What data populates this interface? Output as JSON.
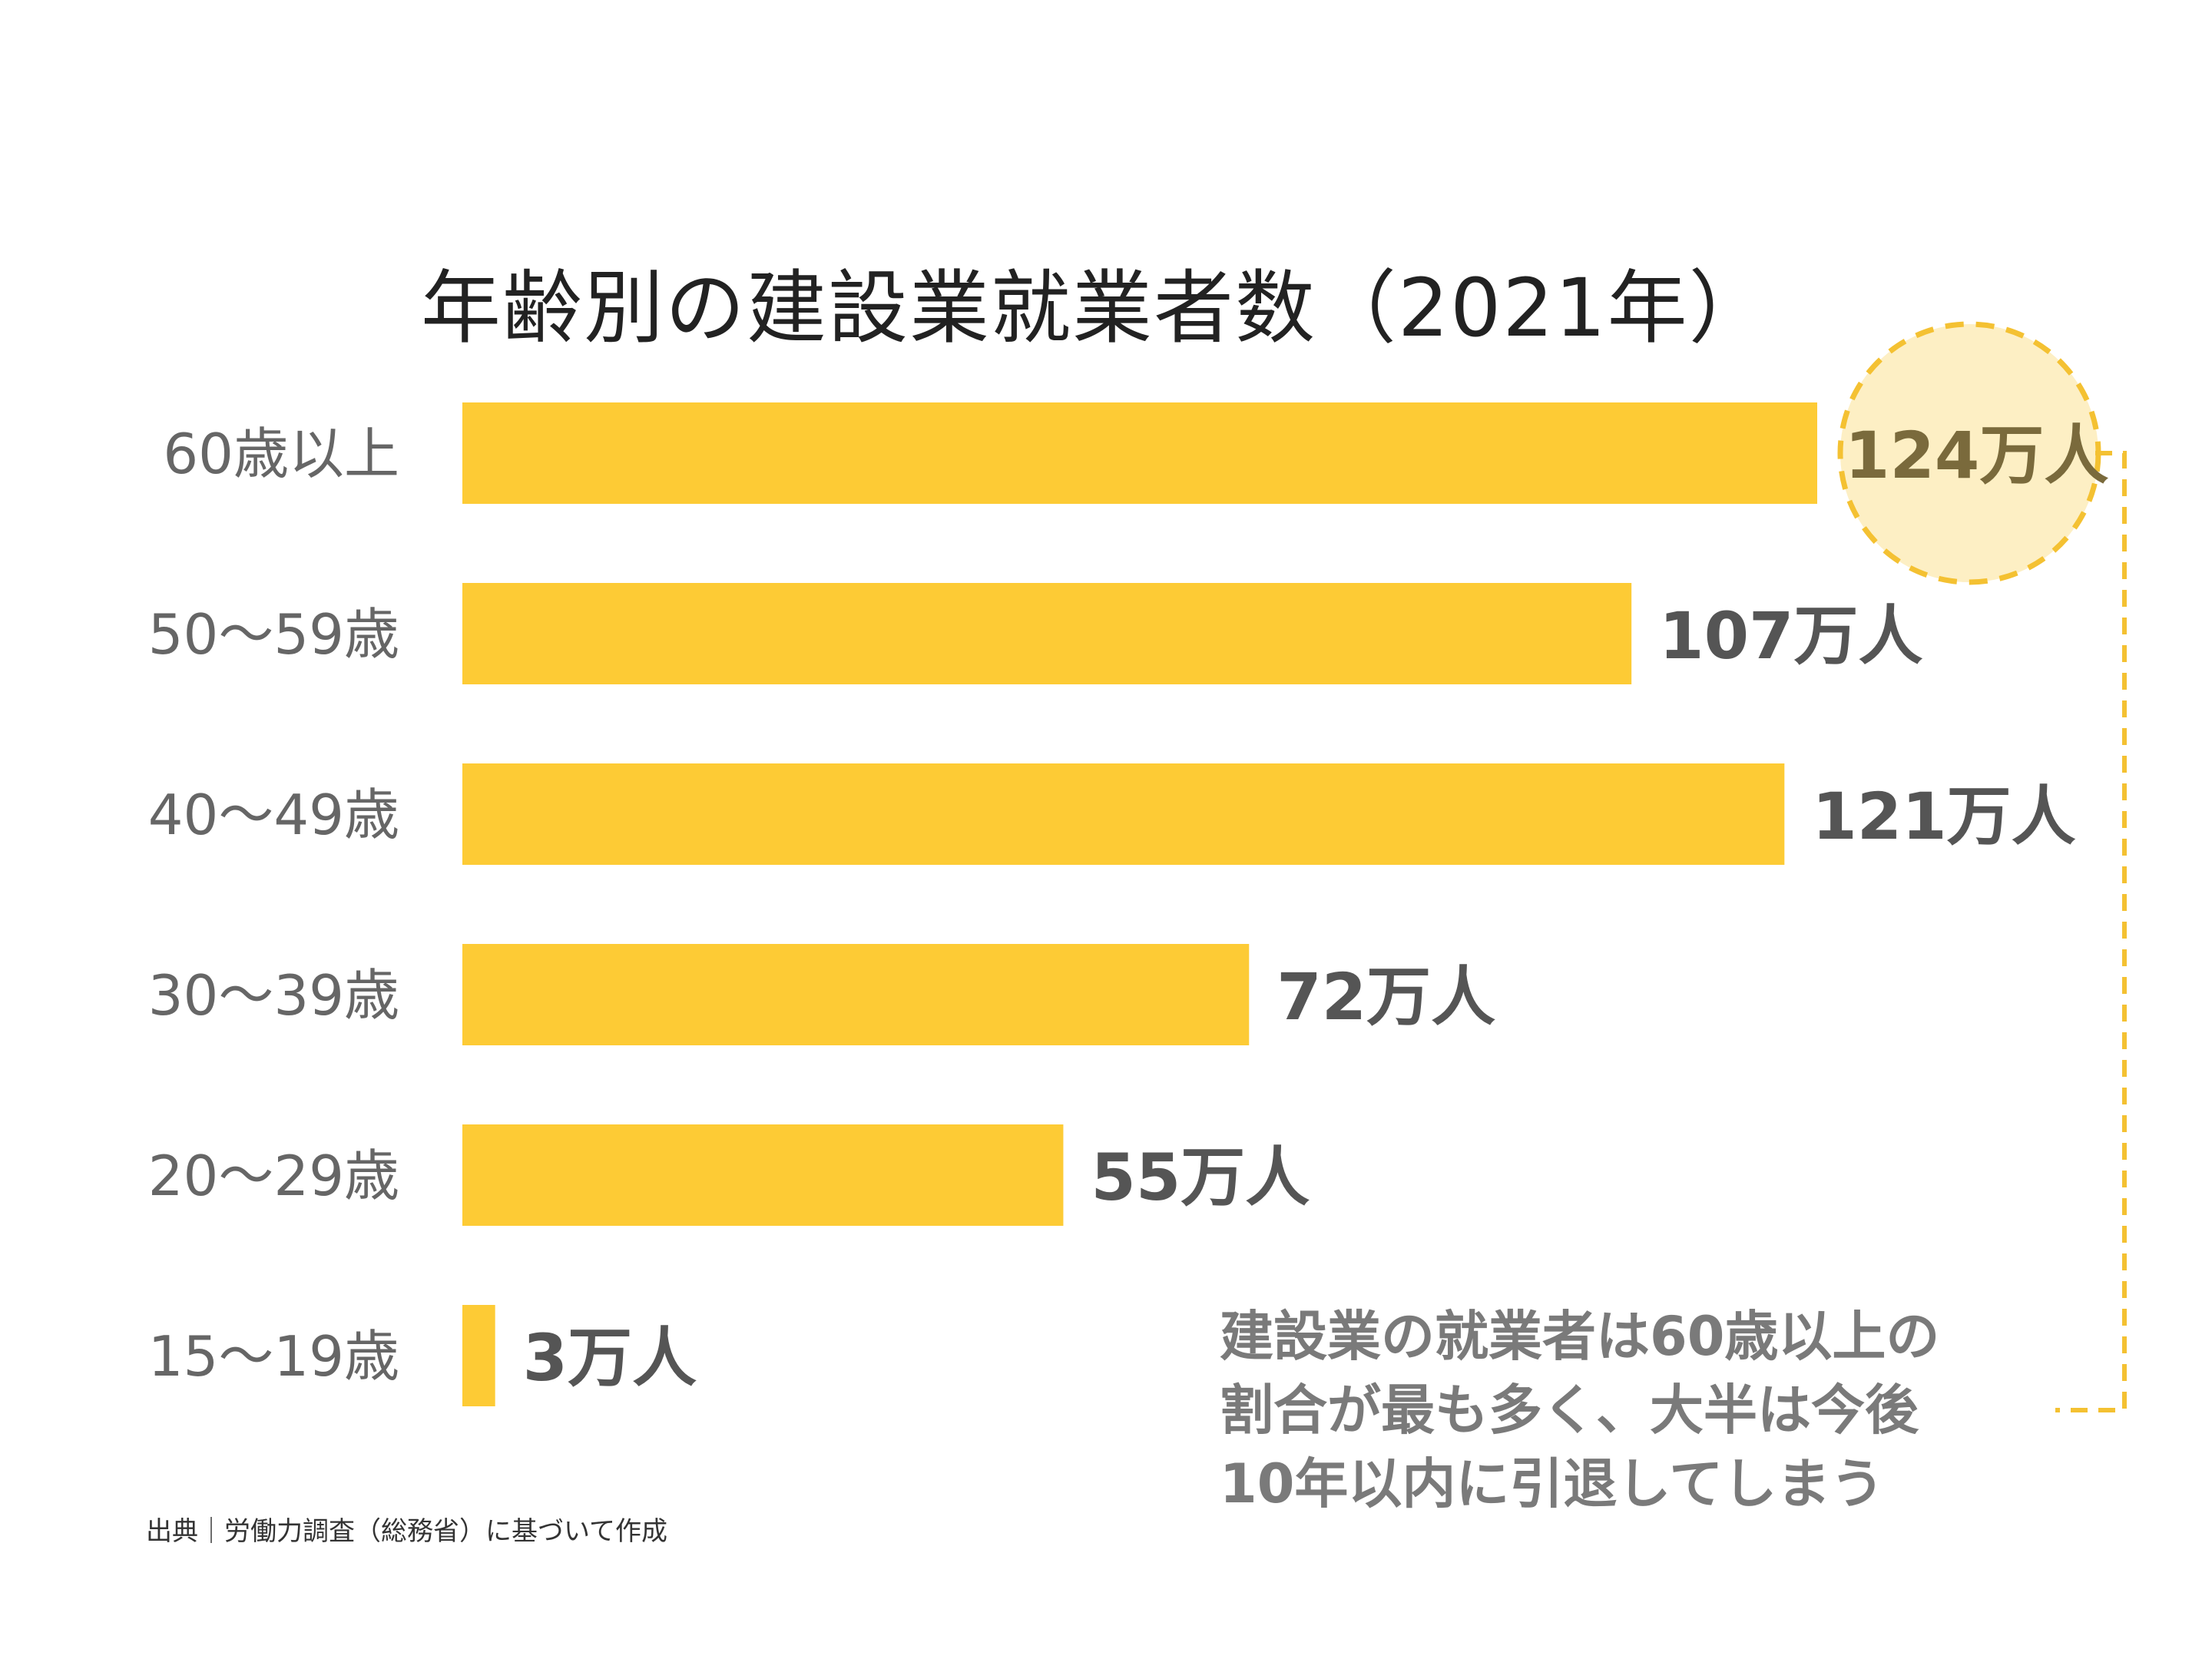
{
  "chart_data": {
    "type": "bar",
    "orientation": "horizontal",
    "title": "年齢別の建設業就業者数（2021年）",
    "categories": [
      "60歳以上",
      "50〜59歳",
      "40〜49歳",
      "30〜39歳",
      "20〜29歳",
      "15〜19歳"
    ],
    "values": [
      124,
      107,
      121,
      72,
      55,
      3
    ],
    "value_labels": [
      "124万人",
      "107万人",
      "121万人",
      "72万人",
      "55万人",
      "3万人"
    ],
    "xlim": [
      0,
      124
    ],
    "grid": false,
    "bar_color": "#fdcb35",
    "highlight_category": "60歳以上"
  },
  "annotation": {
    "lines": [
      "建設業の就業者は60歳以上の",
      "割合が最も多く、大半は今後",
      "10年以内に引退してしまう"
    ]
  },
  "source": "出典｜労働力調査（総務省）に基づいて作成",
  "colors": {
    "bar": "#fdcb35",
    "highlight_fill": "#fdefc4",
    "highlight_stroke": "#f4c132",
    "label_text": "#555555",
    "highlight_label_text": "#7a6a3c",
    "category_text": "#666666"
  }
}
